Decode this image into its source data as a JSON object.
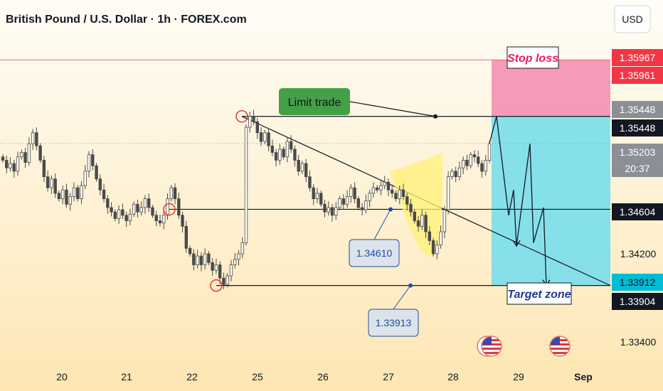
{
  "header": {
    "title": "British Pound / U.S. Dollar · 1h · FOREX.com",
    "currency": "USD"
  },
  "colors": {
    "bull": "#4a4a4a",
    "bear": "#4a4a4a",
    "stop_zone": "#f48fb1",
    "target_zone": "#80deea",
    "stop_line": "#e57373",
    "bg_top": "#fffdf7",
    "bg_bottom": "#fde8b8",
    "limit_box": "#43a047",
    "ellipse_fill": "#fff176"
  },
  "chart_data": {
    "type": "candlestick",
    "x_ticks": [
      "20",
      "21",
      "22",
      "25",
      "26",
      "27",
      "28",
      "29",
      "Sep"
    ],
    "y_ticks": [
      1.342,
      1.334
    ],
    "ylim": [
      1.3318,
      1.3615
    ],
    "price_labels": [
      {
        "text": "1.35967",
        "value": 1.35967,
        "bg": "#f23645",
        "fg": "#ffffff"
      },
      {
        "text": "1.35961",
        "value": 1.35961,
        "bg": "#f23645",
        "fg": "#ffffff"
      },
      {
        "text": "1.35448",
        "value": 1.35448,
        "bg": "#8c8f96",
        "fg": "#ffffff"
      },
      {
        "text": "1.35448",
        "value": 1.35448,
        "bg": "#131722",
        "fg": "#ffffff"
      },
      {
        "text": "1.35203",
        "value": 1.35203,
        "bg": "#8c8f96",
        "fg": "#ffffff"
      },
      {
        "text": "20:37",
        "value": 1.35203,
        "bg": "#8c8f96",
        "fg": "#ffffff"
      },
      {
        "text": "1.34604",
        "value": 1.34604,
        "bg": "#131722",
        "fg": "#ffffff"
      },
      {
        "text": "1.33912",
        "value": 1.33912,
        "bg": "#00bcd4",
        "fg": "#131722"
      },
      {
        "text": "1.33904",
        "value": 1.33904,
        "bg": "#131722",
        "fg": "#ffffff"
      }
    ],
    "levels": {
      "stop_loss": 1.35961,
      "entry": 1.35448,
      "support": 1.34604,
      "target": 1.33912,
      "current": 1.35203
    },
    "annotations": {
      "stop_loss": "Stop loss",
      "limit_trade": "Limit trade",
      "target_zone": "Target zone",
      "price_a": "1.34610",
      "price_b": "1.33913"
    },
    "closes": [
      1.3505,
      1.3498,
      1.3502,
      1.3495,
      1.3508,
      1.3512,
      1.3503,
      1.352,
      1.353,
      1.3518,
      1.3505,
      1.349,
      1.348,
      1.3488,
      1.3475,
      1.347,
      1.3478,
      1.3465,
      1.3472,
      1.348,
      1.347,
      1.3482,
      1.3495,
      1.351,
      1.35,
      1.3488,
      1.3478,
      1.347,
      1.3462,
      1.3458,
      1.3452,
      1.346,
      1.3455,
      1.345,
      1.3456,
      1.3465,
      1.3458,
      1.3462,
      1.347,
      1.3462,
      1.3455,
      1.345,
      1.3448,
      1.3455,
      1.347,
      1.348,
      1.347,
      1.3455,
      1.3445,
      1.3425,
      1.342,
      1.341,
      1.3418,
      1.341,
      1.342,
      1.3412,
      1.3405,
      1.341,
      1.3398,
      1.3392,
      1.34,
      1.341,
      1.3415,
      1.342,
      1.343,
      1.3535,
      1.3545,
      1.354,
      1.353,
      1.3522,
      1.353,
      1.3518,
      1.3512,
      1.3505,
      1.3515,
      1.3508,
      1.3522,
      1.3515,
      1.3505,
      1.3495,
      1.3502,
      1.349,
      1.348,
      1.347,
      1.3475,
      1.3465,
      1.3458,
      1.3462,
      1.3455,
      1.3462,
      1.347,
      1.3465,
      1.3472,
      1.348,
      1.347,
      1.3462,
      1.346,
      1.3468,
      1.3475,
      1.348,
      1.3478,
      1.3482,
      1.3485,
      1.3478,
      1.3475,
      1.347,
      1.3478,
      1.3472,
      1.3465,
      1.3458,
      1.345,
      1.3445,
      1.3455,
      1.344,
      1.3432,
      1.342,
      1.3428,
      1.344,
      1.346,
      1.349,
      1.3495,
      1.349,
      1.3498,
      1.3505,
      1.35,
      1.351,
      1.3508,
      1.3502,
      1.3495,
      1.3505,
      1.352
    ]
  },
  "events": [
    {
      "name": "us-flag-pair",
      "x": "28"
    },
    {
      "name": "us-flag-single",
      "x": "29"
    }
  ]
}
